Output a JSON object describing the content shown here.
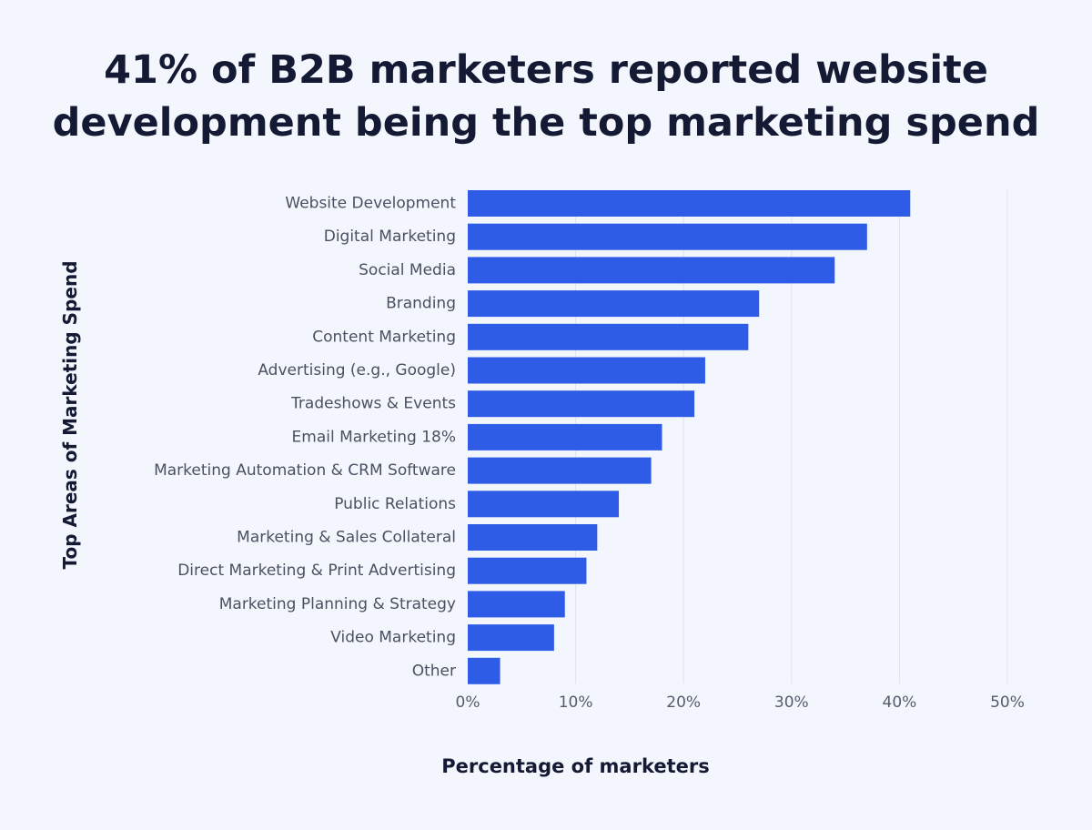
{
  "chart_data": {
    "type": "bar",
    "orientation": "horizontal",
    "title": "41% of B2B marketers reported website development being the top marketing spend",
    "xlabel": "Percentage of marketers",
    "ylabel": "Top Areas of Marketing Spend",
    "categories": [
      "Website Development",
      "Digital Marketing",
      "Social Media",
      "Branding",
      "Content Marketing",
      "Advertising (e.g., Google)",
      "Tradeshows & Events",
      "Email Marketing 18%",
      "Marketing Automation & CRM Software",
      "Public Relations",
      "Marketing & Sales Collateral",
      "Direct Marketing & Print Advertising",
      "Marketing Planning & Strategy",
      "Video Marketing",
      "Other"
    ],
    "values": [
      41,
      37,
      34,
      27,
      26,
      22,
      21,
      18,
      17,
      14,
      12,
      11,
      9,
      8,
      3
    ],
    "xlim": [
      0,
      50
    ],
    "x_ticks": [
      0,
      10,
      20,
      30,
      40,
      50
    ],
    "x_tick_labels": [
      "0%",
      "10%",
      "20%",
      "30%",
      "40%",
      "50%"
    ],
    "grid": "vertical",
    "bar_color": "#2e5ce6",
    "grid_color": "#dfe3ea"
  }
}
